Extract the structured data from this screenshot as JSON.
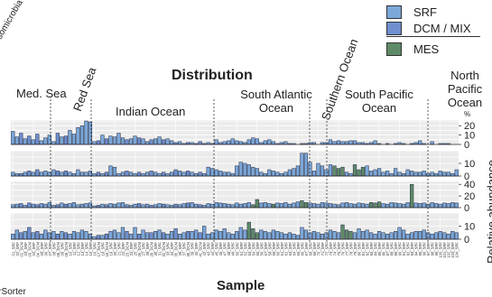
{
  "chart_data": {
    "type": "bar",
    "title": "Distribution",
    "xlabel": "Sample",
    "ylabel": "Relative abundance",
    "unit_label": "%",
    "legend": [
      {
        "name": "SRF",
        "color": "#7ba7d9"
      },
      {
        "name": "DCM / MIX",
        "color": "#6f8fcf"
      },
      {
        "name": "MES",
        "color": "#5f8a67"
      }
    ],
    "regions": [
      "Med. Sea",
      "Red Sea",
      "Indian Ocean",
      "South Atlantic Ocean",
      "Southern Ocean",
      "South Pacific Ocean",
      "North Pacific Ocean"
    ],
    "panels": [
      {
        "yticks": [
          0,
          10,
          20
        ],
        "ylim": [
          0,
          26
        ],
        "values": [
          14,
          8,
          12,
          6,
          9,
          5,
          11,
          4,
          7,
          10,
          3,
          12,
          8,
          9,
          15,
          11,
          18,
          20,
          25,
          24,
          3,
          4,
          10,
          6,
          9,
          8,
          12,
          7,
          5,
          6,
          9,
          7,
          6,
          3,
          5,
          6,
          8,
          5,
          6,
          4,
          2,
          3,
          1,
          2,
          2,
          1,
          3,
          1,
          2,
          1,
          5,
          2,
          3,
          4,
          6,
          4,
          3,
          2,
          5,
          7,
          6,
          2,
          4,
          5,
          3,
          1,
          2,
          3,
          1,
          1,
          0,
          1,
          1,
          2,
          2,
          0,
          2,
          2,
          5,
          3,
          4,
          3,
          3,
          4,
          4,
          2,
          2,
          1,
          2,
          4,
          1,
          0,
          1,
          0,
          1,
          2,
          1,
          0,
          1,
          2,
          4,
          1,
          0,
          3,
          0,
          1,
          1,
          1,
          0,
          0
        ],
        "mes_idx": []
      },
      {
        "yticks": [
          0,
          10
        ],
        "ylim": [
          0,
          20
        ],
        "values": [
          3,
          2,
          2,
          3,
          4,
          3,
          5,
          3,
          4,
          3,
          5,
          4,
          3,
          4,
          3,
          2,
          5,
          3,
          3,
          4,
          2,
          3,
          2,
          3,
          8,
          7,
          2,
          3,
          4,
          3,
          2,
          3,
          2,
          3,
          4,
          3,
          2,
          3,
          2,
          3,
          5,
          4,
          3,
          4,
          3,
          2,
          3,
          2,
          7,
          6,
          5,
          4,
          3,
          3,
          2,
          8,
          11,
          10,
          9,
          7,
          6,
          3,
          2,
          5,
          4,
          3,
          2,
          3,
          5,
          6,
          8,
          18,
          18,
          11,
          4,
          10,
          8,
          5,
          9,
          8,
          6,
          7,
          3,
          2,
          9,
          5,
          7,
          8,
          4,
          5,
          6,
          3,
          4,
          2,
          6,
          3,
          2,
          5,
          4,
          3,
          3,
          4,
          2,
          3,
          2,
          4,
          3,
          3,
          2,
          5
        ],
        "mes_idx": [
          79,
          80,
          81,
          84,
          85,
          86
        ]
      },
      {
        "yticks": [
          0,
          20,
          40
        ],
        "ylim": [
          0,
          45
        ],
        "values": [
          5,
          6,
          7,
          4,
          8,
          6,
          5,
          7,
          6,
          9,
          4,
          5,
          8,
          6,
          7,
          9,
          5,
          6,
          7,
          8,
          3,
          4,
          6,
          5,
          7,
          6,
          8,
          9,
          5,
          4,
          6,
          7,
          5,
          6,
          4,
          5,
          7,
          6,
          5,
          4,
          6,
          5,
          7,
          8,
          9,
          6,
          5,
          4,
          7,
          6,
          9,
          8,
          7,
          6,
          5,
          8,
          6,
          7,
          9,
          5,
          14,
          8,
          9,
          7,
          6,
          8,
          7,
          9,
          6,
          8,
          10,
          12,
          9,
          8,
          7,
          6,
          9,
          8,
          7,
          6,
          5,
          8,
          9,
          7,
          6,
          8,
          7,
          6,
          9,
          8,
          10,
          7,
          6,
          9,
          8,
          7,
          6,
          9,
          40,
          8,
          7,
          8,
          6,
          9,
          7,
          6,
          8,
          7,
          9,
          8
        ],
        "mes_idx": [
          59,
          60,
          64,
          71,
          72,
          88,
          89,
          90,
          98
        ]
      },
      {
        "yticks": [
          0,
          10
        ],
        "ylim": [
          0,
          20
        ],
        "values": [
          4,
          7,
          5,
          6,
          9,
          5,
          6,
          4,
          7,
          5,
          6,
          4,
          6,
          5,
          4,
          6,
          5,
          7,
          6,
          4,
          2,
          3,
          3,
          4,
          6,
          7,
          5,
          9,
          6,
          4,
          9,
          4,
          7,
          5,
          5,
          6,
          7,
          5,
          4,
          6,
          8,
          4,
          5,
          6,
          6,
          7,
          5,
          10,
          4,
          5,
          7,
          6,
          8,
          5,
          4,
          6,
          9,
          7,
          13,
          8,
          5,
          7,
          6,
          5,
          7,
          6,
          5,
          4,
          5,
          4,
          3,
          9,
          7,
          5,
          6,
          5,
          4,
          5,
          7,
          6,
          5,
          11,
          7,
          6,
          5,
          8,
          6,
          7,
          5,
          4,
          6,
          5,
          4,
          5,
          6,
          9,
          7,
          4,
          5,
          6,
          6,
          7,
          5,
          4,
          5,
          6,
          5,
          4,
          6,
          5
        ],
        "mes_idx": [
          58,
          59,
          60,
          81,
          82,
          83
        ]
      }
    ],
    "sample_labels": [
      "01_SRF",
      "02_SRF",
      "02_DCM",
      "03_SRF",
      "03_DCM",
      "04_SRF",
      "04_DCM",
      "05_SRF",
      "06_SRF",
      "07_SRF",
      "08_SRF",
      "08_DCM",
      "09_SRF",
      "09_DCM",
      "10_SRF",
      "11_SRF",
      "12_SRF",
      "13_SRF",
      "14_SRF",
      "15_SRF",
      "16_SRF",
      "17_DCM",
      "18_SRF",
      "18_DCM",
      "19_SRF",
      "20_SRF",
      "21_SRF",
      "22_SRF",
      "23_DCM",
      "24_SRF",
      "25_SRF",
      "26_DCM",
      "27_SRF",
      "28_SRF",
      "29_DCM",
      "30_SRF",
      "31_SRF",
      "32_DCM",
      "33_SRF",
      "34_SRF",
      "35_DCM",
      "36_SRF",
      "37_SRF",
      "38_DCM",
      "39_SRF",
      "40_SRF",
      "41_DCM",
      "42_SRF",
      "43_SRF",
      "44_SRF",
      "45_SRF",
      "46_SRF",
      "47_SRF",
      "48_SRF",
      "49_SRF",
      "50_SRF",
      "51_SRF",
      "52_SRF",
      "53_SRF",
      "54_SRF",
      "55_SRF",
      "56_SRF",
      "57_SRF",
      "58_SRF",
      "59_SRF",
      "60_SRF",
      "61_SRF",
      "62_SRF",
      "63_SRF",
      "64_SRF",
      "65_SRF",
      "66_SRF",
      "67_SRF",
      "68_SRF",
      "69_SRF",
      "70_SRF",
      "71_SRF",
      "72_SRF",
      "73_SRF",
      "74_SRF",
      "75_SRF",
      "76_SRF",
      "77_SRF",
      "78_SRF",
      "79_SRF",
      "80_SRF",
      "81_SRF",
      "82_SRF",
      "83_SRF",
      "84_SRF",
      "85_SRF",
      "86_SRF",
      "87_SRF",
      "88_SRF",
      "89_SRF",
      "90_SRF",
      "91_SRF",
      "92_SRF",
      "93_SRF",
      "94_SRF",
      "95_SRF",
      "96_SRF",
      "97_SRF",
      "98_SRF",
      "99_SRF",
      "100_SRF",
      "101_SRF",
      "102_SRF",
      "103_SRF",
      "104_SRF"
    ],
    "cut_text_top": "somicrobia",
    "cut_text_bottom": "irSorter",
    "grid": true,
    "legend_position": "top-right"
  }
}
